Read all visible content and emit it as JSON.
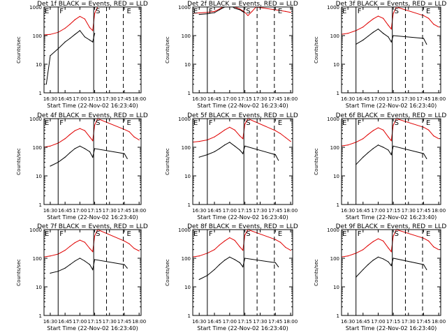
{
  "colors": {
    "events": "#000000",
    "lld": "#e00000",
    "axis": "#000000"
  },
  "common": {
    "xlabel": "Start Time (22-Nov-02 16:23:40)",
    "ylabel": "Counts/sec",
    "xticks": [
      "16:30",
      "16:45",
      "17:00",
      "17:15",
      "17:30",
      "17:45",
      "18:00"
    ],
    "yticks": [
      "1",
      "10",
      "100",
      "1000"
    ],
    "markers": {
      "E": "E",
      "F": "F",
      "S": "S"
    }
  },
  "chart_data": [
    {
      "type": "line",
      "title": "Det 1f BLACK = Events, RED = LLD",
      "xlim": [
        "16:23:40",
        "18:02:00"
      ],
      "ylim": [
        1,
        1000
      ],
      "yscale": "log",
      "vlines_solid": [
        "16:38",
        "17:14"
      ],
      "vlines_dashed": [
        "17:27",
        "17:44"
      ],
      "series": [
        {
          "name": "LLD",
          "color": "red",
          "x": [
            "16:23",
            "16:30",
            "16:38",
            "16:45",
            "16:50",
            "16:55",
            "17:00",
            "17:05",
            "17:10",
            "17:13",
            "17:15",
            "17:18"
          ],
          "values": [
            105,
            110,
            130,
            180,
            250,
            360,
            470,
            380,
            190,
            150,
            600,
            1000
          ]
        },
        {
          "name": "Events",
          "color": "black",
          "x": [
            "16:26",
            "16:30",
            "16:38",
            "16:45",
            "16:50",
            "16:55",
            "17:00",
            "17:05",
            "17:10",
            "17:13",
            "17:15"
          ],
          "values": [
            2,
            20,
            35,
            60,
            80,
            110,
            150,
            90,
            70,
            60,
            120
          ]
        }
      ]
    },
    {
      "type": "line",
      "title": "Det 2f BLACK = Events, RED = LLD",
      "xlim": [
        "16:23:40",
        "18:02:00"
      ],
      "ylim": [
        1,
        1000
      ],
      "yscale": "log",
      "vlines_solid": [
        "16:38",
        "17:14"
      ],
      "vlines_dashed": [
        "17:27",
        "17:44"
      ],
      "series": [
        {
          "name": "LLD",
          "color": "red",
          "x": [
            "16:23",
            "16:30",
            "16:38",
            "16:45",
            "16:50",
            "16:55",
            "17:00",
            "17:05",
            "17:10",
            "17:14",
            "17:18",
            "17:22",
            "17:26",
            "17:45",
            "17:55",
            "18:00"
          ],
          "values": [
            600,
            620,
            650,
            700,
            850,
            1100,
            1300,
            1000,
            850,
            700,
            500,
            700,
            1000,
            800,
            700,
            650
          ]
        },
        {
          "name": "Events",
          "color": "black",
          "x": [
            "16:30",
            "16:38",
            "16:45",
            "16:50",
            "16:55",
            "17:00",
            "17:05",
            "17:10",
            "17:14"
          ],
          "values": [
            550,
            580,
            630,
            800,
            1000,
            1200,
            900,
            800,
            650
          ]
        }
      ]
    },
    {
      "type": "line",
      "title": "Det 3f BLACK = Events, RED = LLD",
      "xlim": [
        "16:23:40",
        "18:02:00"
      ],
      "ylim": [
        1,
        1000
      ],
      "yscale": "log",
      "vlines_solid": [
        "16:38",
        "17:14"
      ],
      "vlines_dashed": [
        "17:27",
        "17:44"
      ],
      "series": [
        {
          "name": "LLD",
          "color": "red",
          "x": [
            "16:23",
            "16:30",
            "16:38",
            "16:45",
            "16:50",
            "16:55",
            "17:00",
            "17:05",
            "17:10",
            "17:13",
            "17:15",
            "17:18",
            "17:45",
            "17:50",
            "17:55",
            "18:00"
          ],
          "values": [
            110,
            120,
            150,
            200,
            280,
            380,
            480,
            400,
            230,
            170,
            600,
            1000,
            500,
            400,
            250,
            200
          ]
        },
        {
          "name": "Events",
          "color": "black",
          "x": [
            "16:38",
            "16:45",
            "16:50",
            "16:55",
            "17:00",
            "17:05",
            "17:10",
            "17:13",
            "17:15",
            "17:45",
            "17:48"
          ],
          "values": [
            50,
            70,
            95,
            130,
            170,
            120,
            90,
            60,
            100,
            80,
            50
          ]
        }
      ]
    },
    {
      "type": "line",
      "title": "Det 4f BLACK = Events, RED = LLD",
      "xlim": [
        "16:23:40",
        "18:02:00"
      ],
      "ylim": [
        1,
        1000
      ],
      "yscale": "log",
      "vlines_solid": [
        "16:38",
        "17:14"
      ],
      "vlines_dashed": [
        "17:27",
        "17:44"
      ],
      "series": [
        {
          "name": "LLD",
          "color": "red",
          "x": [
            "16:23",
            "16:30",
            "16:38",
            "16:45",
            "16:50",
            "16:55",
            "17:00",
            "17:05",
            "17:10",
            "17:13",
            "17:15",
            "17:18",
            "17:45",
            "17:50",
            "17:55",
            "18:00"
          ],
          "values": [
            100,
            110,
            140,
            200,
            280,
            380,
            450,
            380,
            230,
            170,
            600,
            1000,
            420,
            350,
            230,
            180
          ]
        },
        {
          "name": "Events",
          "color": "black",
          "x": [
            "16:30",
            "16:38",
            "16:45",
            "16:50",
            "16:55",
            "17:00",
            "17:05",
            "17:10",
            "17:13",
            "17:15",
            "17:45",
            "17:48"
          ],
          "values": [
            22,
            30,
            45,
            65,
            90,
            110,
            90,
            70,
            45,
            90,
            60,
            40
          ]
        }
      ]
    },
    {
      "type": "line",
      "title": "Det 5f BLACK = Events, RED = LLD",
      "xlim": [
        "16:23:40",
        "18:02:00"
      ],
      "ylim": [
        1,
        1000
      ],
      "yscale": "log",
      "vlines_solid": [
        "16:38",
        "17:14"
      ],
      "vlines_dashed": [
        "17:27",
        "17:44"
      ],
      "series": [
        {
          "name": "LLD",
          "color": "red",
          "x": [
            "16:23",
            "16:30",
            "16:38",
            "16:45",
            "16:50",
            "16:55",
            "17:00",
            "17:05",
            "17:10",
            "17:13",
            "17:15",
            "17:18",
            "17:45",
            "17:50",
            "17:55",
            "18:00"
          ],
          "values": [
            150,
            160,
            180,
            230,
            300,
            400,
            500,
            400,
            250,
            200,
            650,
            1000,
            380,
            300,
            220,
            160
          ]
        },
        {
          "name": "Events",
          "color": "black",
          "x": [
            "16:30",
            "16:38",
            "16:45",
            "16:50",
            "16:55",
            "17:00",
            "17:05",
            "17:10",
            "17:13",
            "17:15",
            "17:45",
            "17:48"
          ],
          "values": [
            45,
            55,
            70,
            90,
            120,
            150,
            110,
            80,
            60,
            110,
            55,
            35
          ]
        }
      ]
    },
    {
      "type": "line",
      "title": "Det 6f BLACK = Events, RED = LLD",
      "xlim": [
        "16:23:40",
        "18:02:00"
      ],
      "ylim": [
        1,
        1000
      ],
      "yscale": "log",
      "vlines_solid": [
        "16:38",
        "17:14"
      ],
      "vlines_dashed": [
        "17:27",
        "17:44"
      ],
      "series": [
        {
          "name": "LLD",
          "color": "red",
          "x": [
            "16:23",
            "16:30",
            "16:38",
            "16:45",
            "16:50",
            "16:55",
            "17:00",
            "17:05",
            "17:10",
            "17:13",
            "17:15",
            "17:18",
            "17:45",
            "17:50",
            "17:55",
            "18:00"
          ],
          "values": [
            110,
            120,
            150,
            200,
            280,
            380,
            480,
            400,
            230,
            170,
            600,
            1000,
            500,
            400,
            250,
            200
          ]
        },
        {
          "name": "Events",
          "color": "black",
          "x": [
            "16:38",
            "16:45",
            "16:50",
            "16:55",
            "17:00",
            "17:05",
            "17:10",
            "17:13",
            "17:15",
            "17:45",
            "17:48"
          ],
          "values": [
            25,
            45,
            65,
            90,
            120,
            100,
            80,
            55,
            110,
            60,
            40
          ]
        }
      ]
    },
    {
      "type": "line",
      "title": "Det 7f BLACK = Events, RED = LLD",
      "xlim": [
        "16:23:40",
        "18:02:00"
      ],
      "ylim": [
        1,
        1000
      ],
      "yscale": "log",
      "vlines_solid": [
        "16:38",
        "17:14"
      ],
      "vlines_dashed": [
        "17:27",
        "17:44"
      ],
      "series": [
        {
          "name": "LLD",
          "color": "red",
          "x": [
            "16:23",
            "16:30",
            "16:38",
            "16:45",
            "16:50",
            "16:55",
            "17:00",
            "17:05",
            "17:10",
            "17:13",
            "17:15",
            "17:18",
            "17:45",
            "17:50",
            "17:55",
            "18:00"
          ],
          "values": [
            110,
            120,
            140,
            190,
            260,
            350,
            430,
            360,
            220,
            170,
            600,
            1000,
            400,
            320,
            220,
            180
          ]
        },
        {
          "name": "Events",
          "color": "black",
          "x": [
            "16:30",
            "16:38",
            "16:45",
            "16:50",
            "16:55",
            "17:00",
            "17:05",
            "17:10",
            "17:13",
            "17:15",
            "17:45",
            "17:48"
          ],
          "values": [
            30,
            35,
            45,
            60,
            80,
            100,
            80,
            60,
            40,
            90,
            60,
            45
          ]
        }
      ]
    },
    {
      "type": "line",
      "title": "Det 8f BLACK = Events, RED = LLD",
      "xlim": [
        "16:23:40",
        "18:02:00"
      ],
      "ylim": [
        1,
        1000
      ],
      "yscale": "log",
      "vlines_solid": [
        "16:38",
        "17:14"
      ],
      "vlines_dashed": [
        "17:27",
        "17:44"
      ],
      "series": [
        {
          "name": "LLD",
          "color": "red",
          "x": [
            "16:23",
            "16:30",
            "16:38",
            "16:45",
            "16:50",
            "16:55",
            "17:00",
            "17:05",
            "17:10",
            "17:13",
            "17:15",
            "17:18",
            "17:45",
            "17:50",
            "17:55",
            "18:00"
          ],
          "values": [
            110,
            120,
            150,
            200,
            290,
            400,
            520,
            420,
            250,
            190,
            650,
            1000,
            450,
            360,
            240,
            190
          ]
        },
        {
          "name": "Events",
          "color": "black",
          "x": [
            "16:30",
            "16:38",
            "16:45",
            "16:50",
            "16:55",
            "17:00",
            "17:05",
            "17:10",
            "17:13",
            "17:15",
            "17:45",
            "17:48"
          ],
          "values": [
            18,
            25,
            40,
            60,
            85,
            110,
            90,
            70,
            50,
            100,
            70,
            50
          ]
        }
      ]
    },
    {
      "type": "line",
      "title": "Det 9f BLACK = Events, RED = LLD",
      "xlim": [
        "16:23:40",
        "18:02:00"
      ],
      "ylim": [
        1,
        1000
      ],
      "yscale": "log",
      "vlines_solid": [
        "16:38",
        "17:14"
      ],
      "vlines_dashed": [
        "17:27",
        "17:44"
      ],
      "series": [
        {
          "name": "LLD",
          "color": "red",
          "x": [
            "16:23",
            "16:30",
            "16:38",
            "16:45",
            "16:50",
            "16:55",
            "17:00",
            "17:05",
            "17:10",
            "17:13",
            "17:15",
            "17:18",
            "17:45",
            "17:50",
            "17:55",
            "18:00"
          ],
          "values": [
            110,
            120,
            150,
            200,
            280,
            380,
            480,
            400,
            230,
            170,
            600,
            1000,
            500,
            400,
            250,
            200
          ]
        },
        {
          "name": "Events",
          "color": "black",
          "x": [
            "16:38",
            "16:45",
            "16:50",
            "16:55",
            "17:00",
            "17:05",
            "17:10",
            "17:13",
            "17:15",
            "17:45",
            "17:48"
          ],
          "values": [
            22,
            40,
            60,
            85,
            110,
            95,
            75,
            55,
            100,
            60,
            40
          ]
        }
      ]
    }
  ]
}
